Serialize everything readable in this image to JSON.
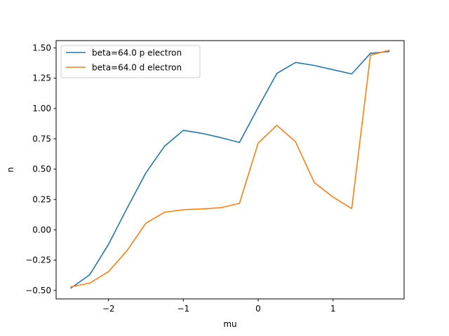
{
  "chart_data": {
    "type": "line",
    "xlabel": "mu",
    "ylabel": "n",
    "xlim": [
      -2.7,
      1.95
    ],
    "ylim": [
      -0.57,
      1.56
    ],
    "xticks": [
      -2,
      -1,
      0,
      1
    ],
    "xtick_labels": [
      "−2",
      "−1",
      "0",
      "1"
    ],
    "yticks": [
      -0.5,
      -0.25,
      0.0,
      0.25,
      0.5,
      0.75,
      1.0,
      1.25,
      1.5
    ],
    "ytick_labels": [
      "−0.50",
      "−0.25",
      "0.00",
      "0.25",
      "0.50",
      "0.75",
      "1.00",
      "1.25",
      "1.50"
    ],
    "grid": false,
    "legend_position": "top-left",
    "x": [
      -2.5,
      -2.25,
      -2.0,
      -1.75,
      -1.5,
      -1.25,
      -1.0,
      -0.75,
      -0.5,
      -0.25,
      0.0,
      0.25,
      0.5,
      0.75,
      1.0,
      1.25,
      1.5,
      1.75
    ],
    "series": [
      {
        "name": "beta=64.0 p electron",
        "color": "#1f77b4",
        "values": [
          -0.48,
          -0.37,
          -0.12,
          0.18,
          0.47,
          0.69,
          0.82,
          0.795,
          0.76,
          0.72,
          1.01,
          1.29,
          1.38,
          1.355,
          1.32,
          1.285,
          1.455,
          1.47
        ]
      },
      {
        "name": "beta=64.0 d electron",
        "color": "#ff7f0e",
        "values": [
          -0.47,
          -0.44,
          -0.345,
          -0.17,
          0.055,
          0.145,
          0.165,
          0.172,
          0.182,
          0.218,
          0.715,
          0.862,
          0.725,
          0.39,
          0.27,
          0.175,
          1.44,
          1.48
        ]
      }
    ]
  }
}
